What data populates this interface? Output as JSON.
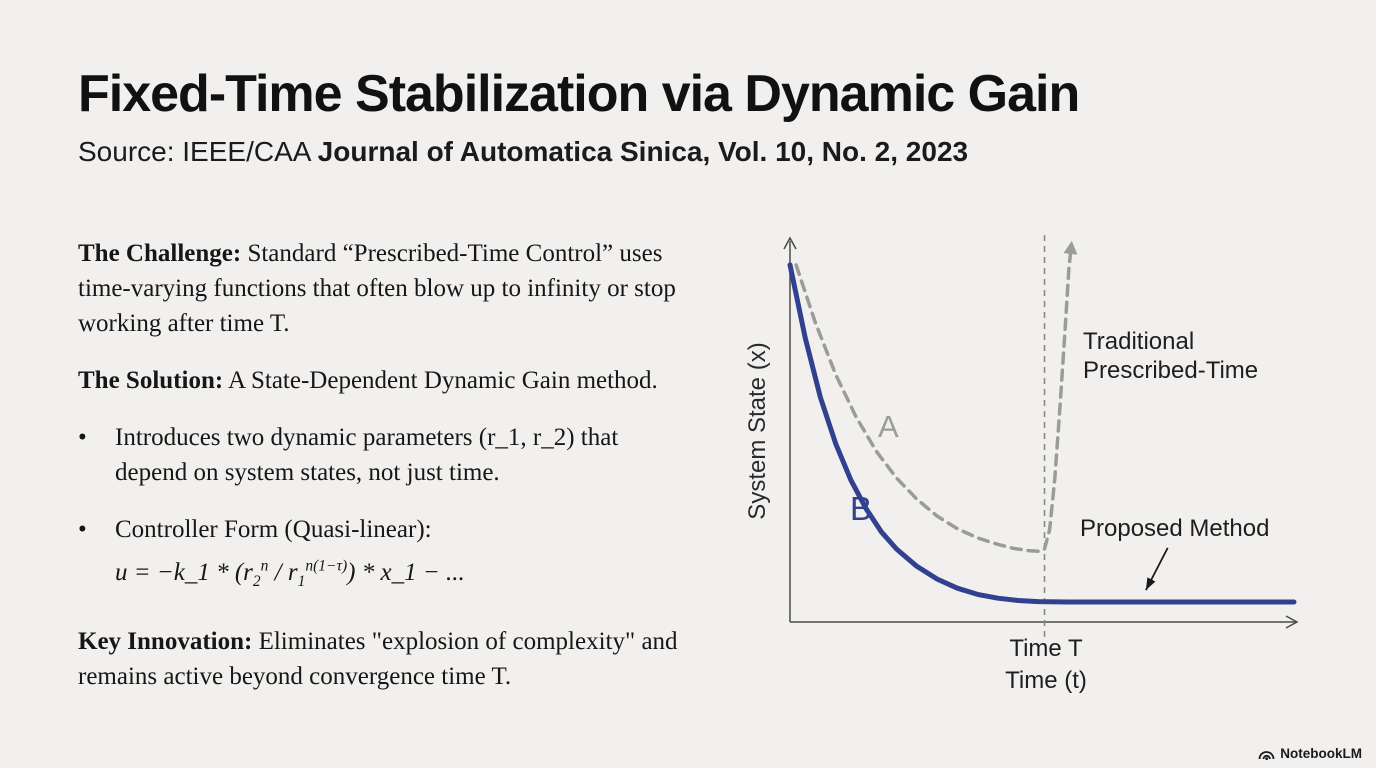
{
  "slide": {
    "title": "Fixed-Time Stabilization via Dynamic Gain",
    "source_prefix": "Source: IEEE/CAA ",
    "source_bold": "Journal of Automatica Sinica, Vol. 10, No. 2, 2023",
    "bullet_glyph": "•",
    "sections": {
      "challenge": {
        "label": "The Challenge:",
        "text": " Standard “Prescribed-Time Control” uses time-varying functions that often blow up to infinity or stop working after time T."
      },
      "solution": {
        "label": "The Solution:",
        "text": " A State-Dependent Dynamic Gain method."
      },
      "bullet1": {
        "text": "Introduces two dynamic parameters (r_1, r_2) that depend on system states, not just time."
      },
      "bullet2": {
        "lead": "Controller Form (Quasi-linear):",
        "formula": {
          "head": "u = −k_1 * (r",
          "sub1": "2",
          "sup1": "n",
          "mid": " / r",
          "sub2": "1",
          "sup2": "n(1−τ)",
          "tail": ") * x_1 − ..."
        }
      },
      "key": {
        "label": "Key Innovation:",
        "text": " Eliminates \"explosion of complexity\" and remains active beyond convergence time T."
      }
    }
  },
  "chart": {
    "y_axis_label": "System State (x)",
    "x_axis_label": "Time (t)",
    "t_marker_label": "Time T",
    "label_a": "A",
    "label_b": "B",
    "trad_line1": "Traditional",
    "trad_line2": "Prescribed-Time",
    "proposed_label": "Proposed Method"
  },
  "chart_data": {
    "type": "line",
    "title": "",
    "xlabel": "Time (t)",
    "ylabel": "System State (x)",
    "grid": false,
    "legend": "inline text annotations",
    "axis_color": "#4a4a48",
    "x_marker": {
      "label": "Time T",
      "t": 0.502,
      "style": "dashed",
      "color": "#8a8a88"
    },
    "series": [
      {
        "id": "curve-traditional-a",
        "name": "A — Traditional Prescribed-Time",
        "style": "dashed",
        "color": "#9b9b98",
        "width": 3.5,
        "dash": "10 7",
        "arrow_end": true,
        "note": "decays toward zero then diverges upward at Time T",
        "points": [
          [
            0.012,
            0.93
          ],
          [
            0.05,
            0.78
          ],
          [
            0.09,
            0.645
          ],
          [
            0.13,
            0.535
          ],
          [
            0.17,
            0.445
          ],
          [
            0.21,
            0.375
          ],
          [
            0.25,
            0.32
          ],
          [
            0.29,
            0.276
          ],
          [
            0.33,
            0.243
          ],
          [
            0.37,
            0.219
          ],
          [
            0.41,
            0.202
          ],
          [
            0.44,
            0.192
          ],
          [
            0.47,
            0.186
          ],
          [
            0.492,
            0.184
          ],
          [
            0.502,
            0.19
          ],
          [
            0.512,
            0.24
          ],
          [
            0.522,
            0.37
          ],
          [
            0.532,
            0.55
          ],
          [
            0.542,
            0.75
          ],
          [
            0.55,
            0.92
          ],
          [
            0.555,
            0.982
          ]
        ]
      },
      {
        "id": "curve-proposed-b",
        "name": "B — Proposed Method",
        "style": "solid",
        "color": "#324090",
        "width": 5,
        "arrow_end": false,
        "note": "converges before Time T and remains at zero afterwards",
        "points": [
          [
            0,
            0.93
          ],
          [
            0.03,
            0.74
          ],
          [
            0.06,
            0.585
          ],
          [
            0.09,
            0.465
          ],
          [
            0.12,
            0.37
          ],
          [
            0.15,
            0.295
          ],
          [
            0.18,
            0.235
          ],
          [
            0.21,
            0.19
          ],
          [
            0.25,
            0.145
          ],
          [
            0.29,
            0.112
          ],
          [
            0.33,
            0.088
          ],
          [
            0.37,
            0.072
          ],
          [
            0.41,
            0.062
          ],
          [
            0.45,
            0.056
          ],
          [
            0.49,
            0.053
          ],
          [
            0.55,
            0.052
          ],
          [
            0.65,
            0.052
          ],
          [
            0.8,
            0.052
          ],
          [
            0.994,
            0.052
          ]
        ]
      }
    ],
    "annotation_arrow": {
      "from": [
        0.745,
        0.193
      ],
      "to": [
        0.702,
        0.083
      ],
      "color": "#1a1a1a"
    }
  },
  "footer": {
    "brand": "NotebookLM"
  }
}
